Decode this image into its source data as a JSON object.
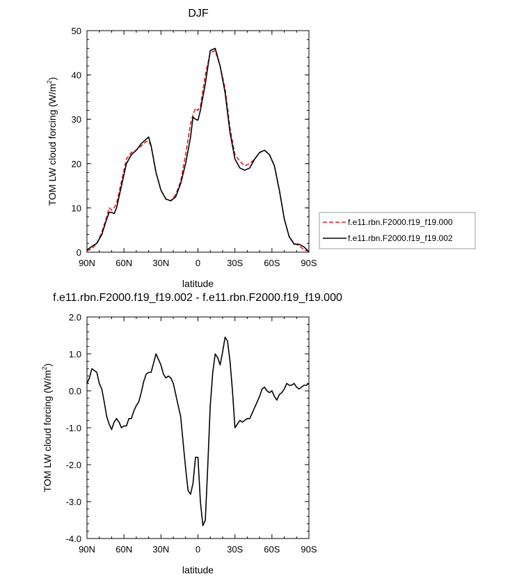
{
  "chart_data": [
    {
      "type": "line",
      "title": "DJF",
      "xlabel": "latitude",
      "ylabel_main": "TOM LW cloud forcing (W/m",
      "ylabel_sup": "2",
      "ylabel_tail": ")",
      "xlim": [
        90,
        -90
      ],
      "ylim": [
        0,
        50
      ],
      "x_ticks": [
        90,
        60,
        30,
        0,
        -30,
        -60,
        -90
      ],
      "x_tick_labels": [
        "90N",
        "60N",
        "30N",
        "0",
        "30S",
        "60S",
        "90S"
      ],
      "y_ticks": [
        0,
        10,
        20,
        30,
        40,
        50
      ],
      "y_tick_labels": [
        "0",
        "10",
        "20",
        "30",
        "40",
        "50"
      ],
      "legend_position": "right",
      "series": [
        {
          "name": "f.e11.rbn.F2000.f19_f19.000",
          "color": "#e31a1c",
          "dash": "dashed",
          "x": [
            90,
            86,
            82,
            78,
            74,
            72,
            70,
            68,
            66,
            62,
            58,
            54,
            50,
            46,
            42,
            40,
            38,
            34,
            30,
            26,
            22,
            18,
            14,
            10,
            6,
            4,
            2,
            0,
            -2,
            -6,
            -10,
            -14,
            -18,
            -22,
            -26,
            -30,
            -34,
            -38,
            -42,
            -46,
            -50,
            -54,
            -58,
            -62,
            -66,
            -70,
            -74,
            -78,
            -82,
            -86,
            -90
          ],
          "y": [
            0.3,
            0.8,
            2.0,
            4.5,
            8.0,
            10.0,
            9.5,
            10.0,
            11.0,
            16.0,
            21.0,
            22.5,
            23.0,
            24.0,
            25.0,
            25.0,
            24.0,
            18.0,
            14.0,
            12.0,
            11.6,
            13.0,
            16.0,
            22.0,
            29.0,
            31.0,
            32.5,
            32.0,
            33.0,
            40.0,
            45.0,
            45.5,
            42.0,
            37.0,
            28.0,
            22.0,
            20.5,
            19.5,
            20.0,
            21.0,
            22.5,
            23.0,
            22.0,
            19.5,
            14.0,
            7.5,
            3.5,
            2.0,
            1.5,
            0.5,
            0.2
          ]
        },
        {
          "name": "f.e11.rbn.F2000.f19_f19.002",
          "color": "#000000",
          "dash": "solid",
          "x": [
            90,
            86,
            82,
            78,
            74,
            72,
            70,
            68,
            66,
            62,
            58,
            54,
            50,
            46,
            42,
            40,
            38,
            34,
            30,
            26,
            22,
            18,
            14,
            10,
            6,
            4,
            2,
            0,
            -2,
            -6,
            -10,
            -14,
            -18,
            -22,
            -26,
            -30,
            -34,
            -38,
            -42,
            -46,
            -50,
            -54,
            -58,
            -62,
            -66,
            -70,
            -74,
            -78,
            -82,
            -86,
            -90
          ],
          "y": [
            0.5,
            1.3,
            2.0,
            4.0,
            7.5,
            9.0,
            9.0,
            8.7,
            10.0,
            15.0,
            20.0,
            22.0,
            23.0,
            24.5,
            25.5,
            26.0,
            24.0,
            18.0,
            14.0,
            12.0,
            11.6,
            12.5,
            15.5,
            20.0,
            26.0,
            30.5,
            30.0,
            29.8,
            32.0,
            38.0,
            45.5,
            46.0,
            42.0,
            36.0,
            27.0,
            21.0,
            19.0,
            18.5,
            19.0,
            21.0,
            22.5,
            23.0,
            22.0,
            19.5,
            14.0,
            7.5,
            3.5,
            1.8,
            1.8,
            1.2,
            0.1
          ]
        }
      ]
    },
    {
      "type": "line",
      "title": "f.e11.rbn.F2000.f19_f19.002 - f.e11.rbn.F2000.f19_f19.000",
      "xlabel": "latitude",
      "ylabel_main": "TOM LW cloud forcing (W/m",
      "ylabel_sup": "2",
      "ylabel_tail": ")",
      "xlim": [
        90,
        -90
      ],
      "ylim": [
        -4.0,
        2.0
      ],
      "x_ticks": [
        90,
        60,
        30,
        0,
        -30,
        -60,
        -90
      ],
      "x_tick_labels": [
        "90N",
        "60N",
        "30N",
        "0",
        "30S",
        "60S",
        "90S"
      ],
      "y_ticks": [
        2.0,
        1.0,
        0.0,
        -1.0,
        -2.0,
        -3.0,
        -4.0
      ],
      "y_tick_labels": [
        "2.0",
        "1.0",
        "0.0",
        "-1.0",
        "-2.0",
        "-3.0",
        "-4.0"
      ],
      "series": [
        {
          "color": "#000000",
          "dash": "solid",
          "x": [
            90,
            88,
            86,
            84,
            82,
            80,
            78,
            76,
            74,
            72,
            70,
            68,
            66,
            64,
            62,
            60,
            58,
            56,
            54,
            52,
            50,
            48,
            46,
            44,
            42,
            40,
            38,
            36,
            34,
            32,
            30,
            28,
            26,
            24,
            22,
            20,
            18,
            16,
            14,
            12,
            10,
            8,
            6,
            4,
            2,
            0,
            -2,
            -4,
            -6,
            -8,
            -10,
            -12,
            -14,
            -16,
            -18,
            -20,
            -22,
            -24,
            -26,
            -28,
            -30,
            -32,
            -34,
            -36,
            -38,
            -40,
            -42,
            -44,
            -46,
            -48,
            -50,
            -52,
            -54,
            -56,
            -58,
            -60,
            -62,
            -64,
            -66,
            -68,
            -70,
            -72,
            -74,
            -76,
            -78,
            -80,
            -82,
            -84,
            -86,
            -88,
            -90
          ],
          "y": [
            0.2,
            0.35,
            0.6,
            0.55,
            0.5,
            0.2,
            0.05,
            -0.3,
            -0.7,
            -0.9,
            -1.05,
            -0.85,
            -0.75,
            -0.85,
            -1.0,
            -0.95,
            -0.95,
            -0.75,
            -0.75,
            -0.55,
            -0.4,
            -0.3,
            -0.05,
            0.25,
            0.45,
            0.5,
            0.5,
            0.75,
            1.0,
            0.85,
            0.7,
            0.45,
            0.35,
            0.4,
            0.35,
            0.2,
            -0.1,
            -0.4,
            -0.7,
            -1.4,
            -2.1,
            -2.7,
            -2.8,
            -2.5,
            -1.8,
            -1.8,
            -3.0,
            -3.65,
            -3.5,
            -2.0,
            -0.4,
            0.5,
            1.0,
            0.9,
            0.7,
            1.05,
            1.45,
            1.35,
            0.8,
            0.0,
            -1.0,
            -0.9,
            -0.8,
            -0.85,
            -0.8,
            -0.75,
            -0.75,
            -0.6,
            -0.45,
            -0.3,
            -0.15,
            0.05,
            0.1,
            0.0,
            -0.05,
            0.0,
            -0.15,
            -0.25,
            -0.1,
            -0.05,
            0.05,
            0.2,
            0.15,
            0.15,
            0.2,
            0.1,
            0.05,
            0.1,
            0.15,
            0.15,
            0.2
          ]
        }
      ]
    }
  ]
}
